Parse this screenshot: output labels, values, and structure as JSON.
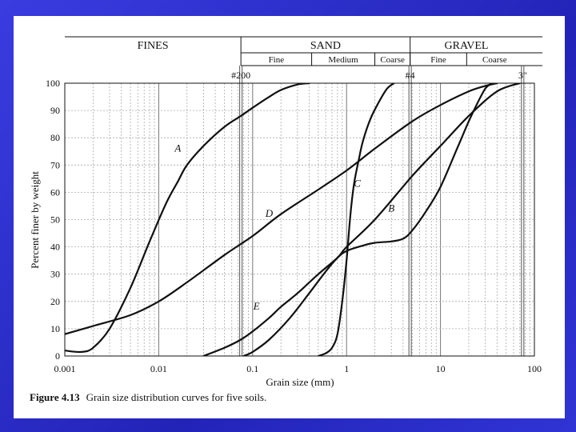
{
  "chart_data": {
    "type": "line",
    "xscale": "log",
    "xlim": [
      0.001,
      100
    ],
    "ylim": [
      0,
      100
    ],
    "xlabel": "Grain size (mm)",
    "ylabel": "Percent finer by weight",
    "x_ticks": [
      {
        "v": 0.001,
        "label": "0.001"
      },
      {
        "v": 0.01,
        "label": "0.01"
      },
      {
        "v": 0.1,
        "label": "0.1"
      },
      {
        "v": 1,
        "label": "1"
      },
      {
        "v": 10,
        "label": "10"
      },
      {
        "v": 100,
        "label": "100"
      }
    ],
    "y_ticks": [
      0,
      10,
      20,
      30,
      40,
      50,
      60,
      70,
      80,
      90,
      100
    ],
    "y_tick_labels": [
      "0",
      "10",
      "20",
      "30",
      "40",
      "50",
      "60",
      "70",
      "80",
      "90",
      "100"
    ],
    "grid": true,
    "caption": {
      "number": "Figure 4.13",
      "text": "Grain size distribution curves for five soils."
    },
    "header": {
      "groups": [
        {
          "label": "FINES",
          "x0": 0.001,
          "x1": 0.075
        },
        {
          "label": "SAND",
          "x0": 0.075,
          "x1": 4.75
        },
        {
          "label": "GRAVEL",
          "x0": 4.75,
          "x1": 75
        }
      ],
      "subgroups": [
        {
          "label": "Fine",
          "x0": 0.075,
          "x1": 0.425
        },
        {
          "label": "Medium",
          "x0": 0.425,
          "x1": 2.0
        },
        {
          "label": "Coarse",
          "x0": 2.0,
          "x1": 4.75
        },
        {
          "label": "Fine",
          "x0": 4.75,
          "x1": 19
        },
        {
          "label": "Coarse",
          "x0": 19,
          "x1": 75
        }
      ]
    },
    "sieve_lines": [
      {
        "label": "#200",
        "x": 0.075
      },
      {
        "label": "#4",
        "x": 4.75
      },
      {
        "label": "3\"",
        "x": 75
      }
    ],
    "series": [
      {
        "name": "A",
        "label_at": {
          "x": 0.016,
          "y": 75
        },
        "points": [
          [
            0.001,
            2
          ],
          [
            0.0015,
            1.5
          ],
          [
            0.002,
            3
          ],
          [
            0.003,
            10
          ],
          [
            0.005,
            25
          ],
          [
            0.008,
            42
          ],
          [
            0.012,
            56
          ],
          [
            0.016,
            64
          ],
          [
            0.02,
            70
          ],
          [
            0.03,
            77
          ],
          [
            0.05,
            84
          ],
          [
            0.075,
            88
          ],
          [
            0.1,
            91
          ],
          [
            0.15,
            95
          ],
          [
            0.2,
            97.5
          ],
          [
            0.3,
            99.5
          ],
          [
            0.4,
            100
          ]
        ]
      },
      {
        "name": "B",
        "label_at": {
          "x": 3.0,
          "y": 53
        },
        "points": [
          [
            0.08,
            0
          ],
          [
            0.1,
            1.5
          ],
          [
            0.15,
            6
          ],
          [
            0.25,
            14
          ],
          [
            0.4,
            23
          ],
          [
            0.6,
            31
          ],
          [
            0.8,
            36
          ],
          [
            1.0,
            38.5
          ],
          [
            1.5,
            40.5
          ],
          [
            2.0,
            41.5
          ],
          [
            3,
            42
          ],
          [
            4,
            43
          ],
          [
            5,
            46
          ],
          [
            7,
            53
          ],
          [
            10,
            62
          ],
          [
            15,
            76
          ],
          [
            20,
            86
          ],
          [
            25,
            93
          ],
          [
            30,
            98
          ],
          [
            35,
            100
          ]
        ]
      },
      {
        "name": "C",
        "label_at": {
          "x": 1.3,
          "y": 62
        },
        "points": [
          [
            0.5,
            0
          ],
          [
            0.6,
            1
          ],
          [
            0.7,
            3
          ],
          [
            0.8,
            8
          ],
          [
            0.9,
            20
          ],
          [
            1.0,
            35
          ],
          [
            1.1,
            52
          ],
          [
            1.2,
            63
          ],
          [
            1.35,
            72
          ],
          [
            1.5,
            79
          ],
          [
            1.8,
            87
          ],
          [
            2.2,
            93
          ],
          [
            2.7,
            98
          ],
          [
            3.2,
            100
          ]
        ]
      },
      {
        "name": "D",
        "label_at": {
          "x": 0.15,
          "y": 51
        },
        "points": [
          [
            0.001,
            8
          ],
          [
            0.002,
            11
          ],
          [
            0.005,
            15
          ],
          [
            0.01,
            20
          ],
          [
            0.02,
            27
          ],
          [
            0.05,
            37
          ],
          [
            0.1,
            44
          ],
          [
            0.2,
            52
          ],
          [
            0.5,
            61
          ],
          [
            1.0,
            68
          ],
          [
            2,
            76
          ],
          [
            5,
            86
          ],
          [
            10,
            92
          ],
          [
            20,
            97
          ],
          [
            30,
            99
          ],
          [
            40,
            100
          ]
        ]
      },
      {
        "name": "E",
        "label_at": {
          "x": 0.11,
          "y": 17
        },
        "points": [
          [
            0.03,
            0
          ],
          [
            0.05,
            3
          ],
          [
            0.075,
            6
          ],
          [
            0.1,
            9
          ],
          [
            0.15,
            14
          ],
          [
            0.2,
            18
          ],
          [
            0.3,
            23
          ],
          [
            0.5,
            30
          ],
          [
            0.8,
            36
          ],
          [
            1,
            40
          ],
          [
            2,
            50
          ],
          [
            5,
            66
          ],
          [
            10,
            77
          ],
          [
            20,
            88
          ],
          [
            40,
            97
          ],
          [
            70,
            100
          ]
        ]
      }
    ]
  }
}
